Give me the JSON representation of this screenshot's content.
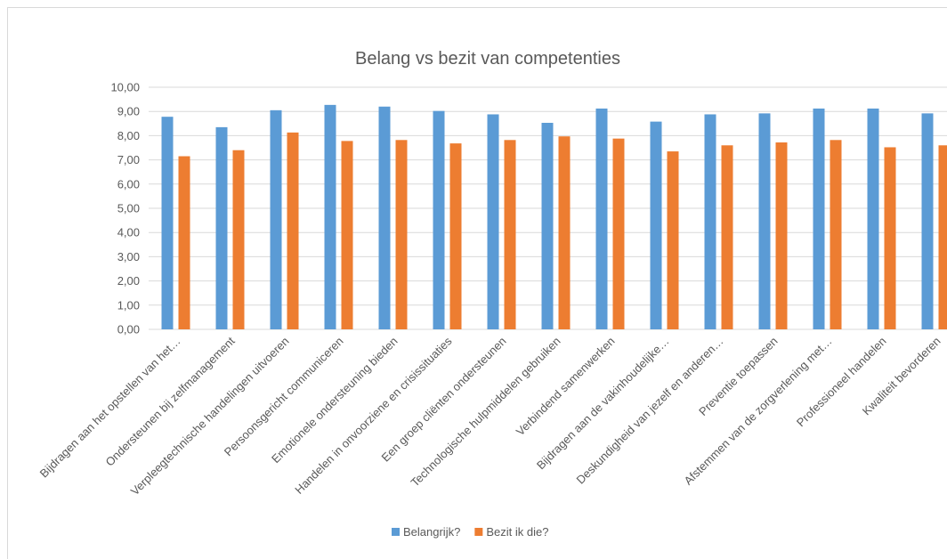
{
  "chart_data": {
    "type": "bar",
    "title": "Belang vs bezit van competenties",
    "xlabel": "",
    "ylabel": "",
    "ylim": [
      0,
      10
    ],
    "ytick_step": 1,
    "ytick_labels": [
      "0,00",
      "1,00",
      "2,00",
      "3,00",
      "4,00",
      "5,00",
      "6,00",
      "7,00",
      "8,00",
      "9,00",
      "10,00"
    ],
    "grid": true,
    "legend_position": "bottom",
    "categories": [
      "Bijdragen aan het opstellen van het…",
      "Ondersteunen bij zelfmanagement",
      "Verpleegtechnische handelingen uitvoeren",
      "Persoonsgericht communiceren",
      "Emotionele ondersteuning bieden",
      "Handelen in onvoorziene en crisissituaties",
      "Een groep cliënten ondersteunen",
      "Technologische hulpmiddelen gebruiken",
      "Verbindend samenwerken",
      "Bijdragen aan de vakinhoudelijke…",
      "Deskundigheid van jezelf en anderen…",
      "Preventie toepassen",
      "Afstemmen van de zorgverlening met…",
      "Professioneel handelen",
      "Kwaliteit bevorderen"
    ],
    "series": [
      {
        "name": "Belangrijk?",
        "color": "#5b9bd5",
        "values": [
          8.78,
          8.35,
          9.05,
          9.27,
          9.2,
          9.02,
          8.88,
          8.53,
          9.12,
          8.58,
          8.88,
          8.92,
          9.12,
          9.12,
          8.92
        ]
      },
      {
        "name": "Bezit ik die?",
        "color": "#ed7d31",
        "values": [
          7.15,
          7.4,
          8.13,
          7.78,
          7.82,
          7.68,
          7.82,
          7.97,
          7.88,
          7.35,
          7.6,
          7.72,
          7.82,
          7.52,
          7.6
        ]
      }
    ]
  }
}
